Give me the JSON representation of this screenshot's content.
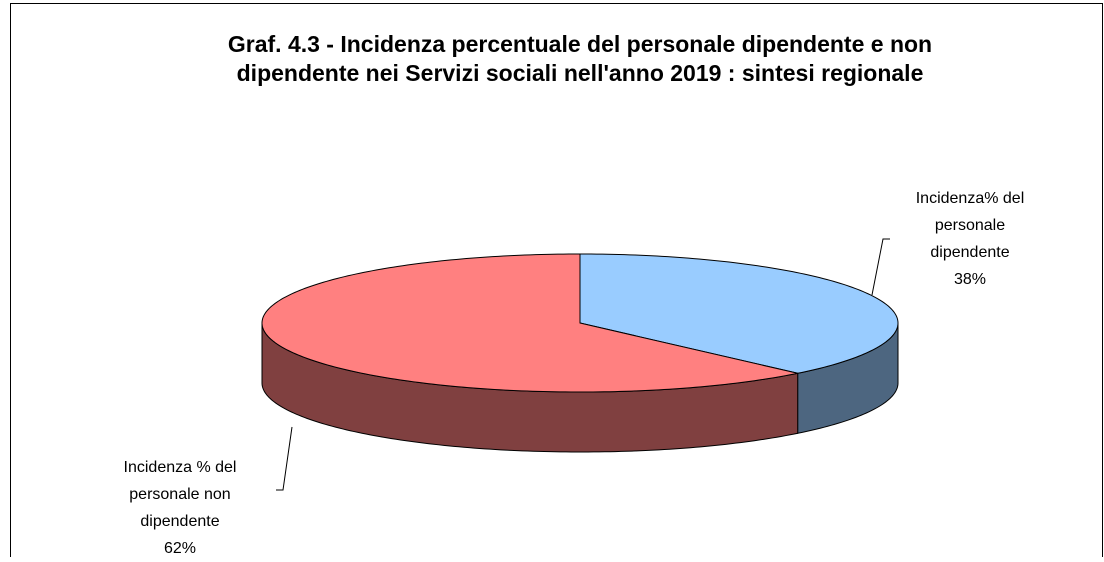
{
  "chart_data": {
    "type": "pie",
    "pie_3d": true,
    "title": "Graf. 4.3 - Incidenza percentuale del personale dipendente e non dipendente nei Servizi sociali nell'anno 2019 : sintesi regionale",
    "categories": [
      "Incidenza% del personale dipendente",
      "Incidenza % del personale non dipendente"
    ],
    "values": [
      38,
      62
    ],
    "value_labels": [
      "38%",
      "62%"
    ],
    "colors": [
      "#99ccff",
      "#ff8080"
    ],
    "side_colors": [
      "#4d6680",
      "#804040"
    ]
  }
}
